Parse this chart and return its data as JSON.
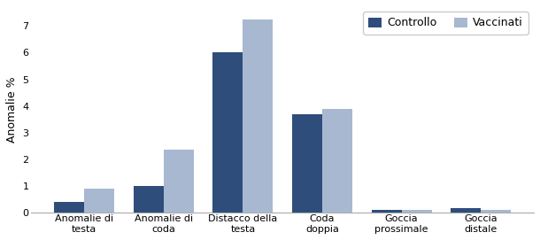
{
  "categories": [
    "Anomalie di\ntesta",
    "Anomalie di\ncoda",
    "Distacco della\ntesta",
    "Coda\ndoppia",
    "Goccia\nprossimale",
    "Goccia\ndistale"
  ],
  "controllo": [
    0.4,
    1.0,
    6.0,
    3.7,
    0.1,
    0.15
  ],
  "vaccinati": [
    0.9,
    2.35,
    7.25,
    3.9,
    0.1,
    0.1
  ],
  "color_controllo": "#2e4d7b",
  "color_vaccinati": "#a8b8d0",
  "ylabel": "Anomalie %",
  "ylim": [
    0,
    7.75
  ],
  "yticks": [
    0,
    1,
    2,
    3,
    4,
    5,
    6,
    7
  ],
  "legend_labels": [
    "Controllo",
    "Vaccinati"
  ],
  "bar_width": 0.38,
  "background_color": "#ffffff",
  "axes_background": "#ffffff",
  "tick_fontsize": 8,
  "label_fontsize": 9,
  "legend_fontsize": 9
}
